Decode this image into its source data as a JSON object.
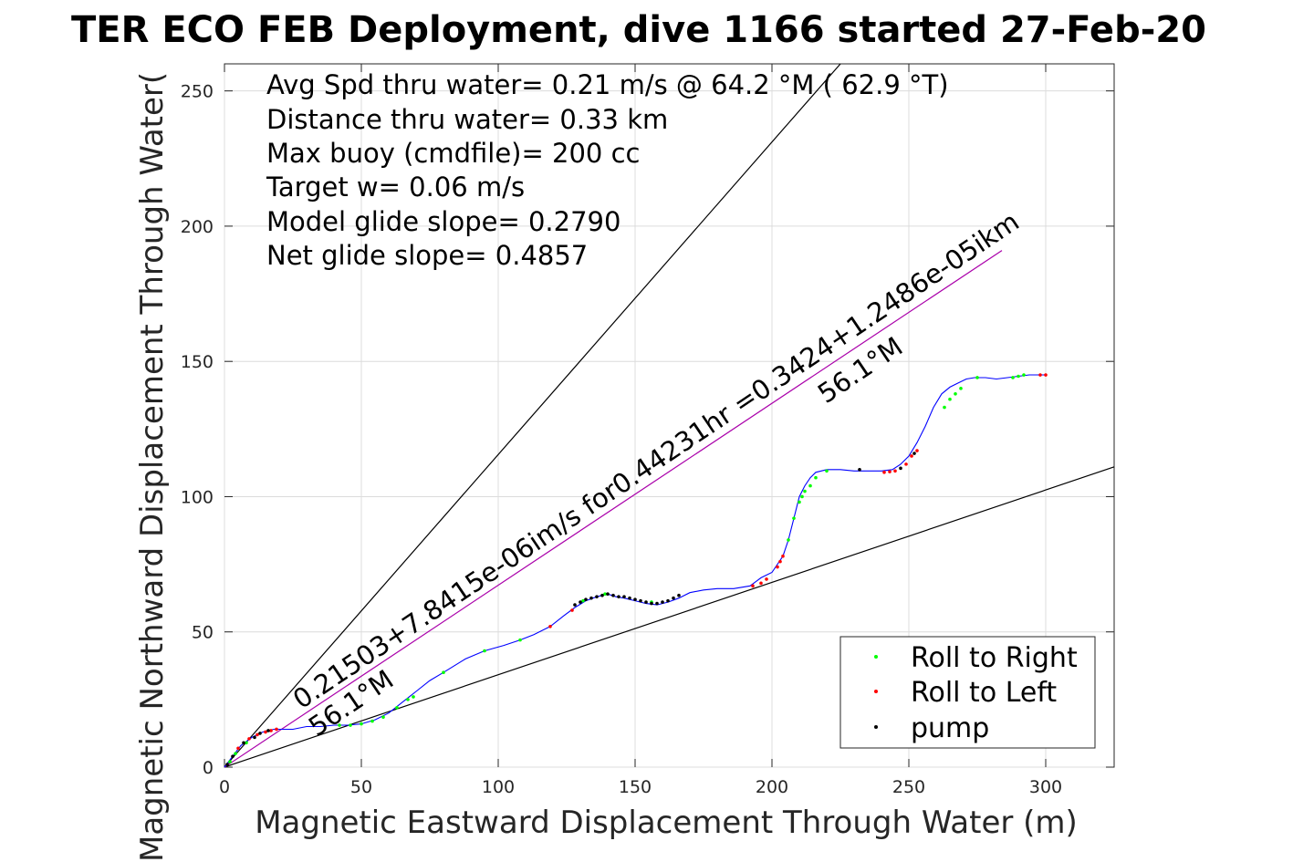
{
  "chart_data": {
    "type": "scatter",
    "title": "TER ECO FEB Deployment, dive 1166 started 27-Feb-20",
    "xlabel": "Magnetic Eastward Displacement Through Water (m)",
    "ylabel": "Magnetic Northward Displacement Through Water(",
    "xlim": [
      0,
      325
    ],
    "ylim": [
      0,
      260
    ],
    "xticks": [
      0,
      50,
      100,
      150,
      200,
      250,
      300
    ],
    "yticks": [
      0,
      50,
      100,
      150,
      200,
      250
    ],
    "xtick_labels": [
      "0",
      "50",
      "100",
      "150",
      "200",
      "250",
      "300"
    ],
    "ytick_labels": [
      "0",
      "50",
      "100",
      "150",
      "200",
      "250"
    ],
    "grid": true,
    "legend_position": "bottom-right",
    "info_lines": [
      "Avg Spd thru water=  0.21 m/s @  64.2 °M ( 62.9 °T)",
      "Distance thru water=  0.33 km",
      "Max buoy (cmdfile)= 200 cc",
      "Target w= 0.06 m/s",
      "Model glide slope= 0.2790",
      "Net glide slope= 0.4857"
    ],
    "line_annotations": {
      "fit": "0.21503+7.8415e-06im/s for0.44231hr =0.3424+1.2486e-05ikm",
      "heading_upper": "56.1°M",
      "heading_lower": "56.1°M"
    },
    "legend": [
      {
        "label": "Roll to Right",
        "color": "#00ff00"
      },
      {
        "label": "Roll to Left",
        "color": "#ff0000"
      },
      {
        "label": "pump",
        "color": "#000000"
      }
    ],
    "reference_lines": [
      {
        "name": "upper-glide-bound",
        "color": "#000000",
        "x": [
          0,
          225
        ],
        "y": [
          0,
          260
        ]
      },
      {
        "name": "lower-glide-bound",
        "color": "#000000",
        "x": [
          0,
          325
        ],
        "y": [
          0,
          111
        ]
      },
      {
        "name": "heading-line",
        "color": "#aa00aa",
        "x": [
          0,
          284
        ],
        "y": [
          0,
          191
        ]
      }
    ],
    "track": {
      "color": "#0000ff",
      "x": [
        0,
        3,
        6,
        10,
        14,
        18,
        20,
        25,
        30,
        35,
        40,
        45,
        50,
        55,
        60,
        65,
        70,
        75,
        80,
        88,
        95,
        102,
        108,
        113,
        119,
        124,
        128,
        132,
        136,
        140,
        143,
        146,
        150,
        154,
        158,
        162,
        166,
        170,
        175,
        180,
        186,
        192,
        196,
        200,
        204,
        206,
        208,
        210,
        212,
        214,
        216,
        220,
        225,
        230,
        235,
        240,
        244,
        247,
        250,
        253,
        256,
        259,
        262,
        265,
        268,
        271,
        274,
        278,
        282,
        286,
        290,
        294,
        298,
        300
      ],
      "y": [
        0,
        4,
        8,
        11,
        13,
        14,
        14,
        14,
        15,
        15,
        15.5,
        15.5,
        16,
        17.5,
        20,
        24,
        28,
        32,
        35,
        40,
        43,
        45,
        47,
        49,
        52,
        56,
        59,
        61.5,
        63,
        64,
        63,
        62.5,
        61.5,
        60.5,
        60,
        61,
        62.5,
        64.5,
        65.5,
        66,
        66,
        67,
        70,
        72,
        78,
        84,
        92,
        100,
        104,
        107,
        109,
        110,
        110,
        109.5,
        109.5,
        109.5,
        110,
        112,
        115,
        120,
        126,
        133,
        138,
        140.5,
        142,
        143.5,
        144,
        144,
        143.5,
        144,
        144.5,
        145,
        145,
        145
      ]
    },
    "samples": {
      "roll_right": {
        "x": [
          2,
          4,
          8,
          42,
          46,
          50,
          54,
          58,
          63,
          67,
          69,
          80,
          95,
          108,
          131,
          139,
          156,
          206,
          208,
          210,
          211,
          212,
          214,
          216,
          220,
          263,
          265,
          267,
          269,
          275,
          288,
          290,
          292
        ],
        "y": [
          2,
          5,
          9,
          15.5,
          15.5,
          16,
          17,
          18.5,
          22,
          25,
          26,
          35,
          43,
          47,
          61.5,
          64,
          61,
          84,
          92,
          98,
          100,
          102,
          104,
          107,
          109.5,
          133,
          136,
          138,
          140,
          144,
          144,
          144.5,
          145
        ]
      },
      "roll_left": {
        "x": [
          5,
          9,
          12,
          15,
          17,
          19,
          119,
          127,
          193,
          196,
          198,
          202,
          203,
          204,
          241,
          243,
          245,
          249,
          251,
          253,
          298,
          300
        ],
        "y": [
          7,
          10.5,
          12,
          13,
          13.5,
          14,
          52,
          58,
          67,
          68,
          69.5,
          74,
          76,
          78,
          109,
          109.2,
          109.5,
          112,
          115,
          117,
          145,
          145
        ]
      },
      "pump": {
        "x": [
          1,
          3,
          7,
          11,
          13,
          16,
          128,
          130,
          132,
          134,
          136,
          138,
          140,
          142,
          144,
          146,
          148,
          150,
          152,
          154,
          156,
          158,
          160,
          162,
          164,
          166,
          232,
          247,
          252
        ],
        "y": [
          1,
          4,
          9,
          11,
          12.5,
          13.5,
          60,
          61,
          62,
          62.5,
          63,
          63.5,
          64,
          63.5,
          63,
          63,
          62.5,
          62,
          61.5,
          61,
          60.5,
          60.5,
          61,
          61.5,
          62.5,
          63.5,
          110,
          110.5,
          116
        ]
      }
    }
  }
}
